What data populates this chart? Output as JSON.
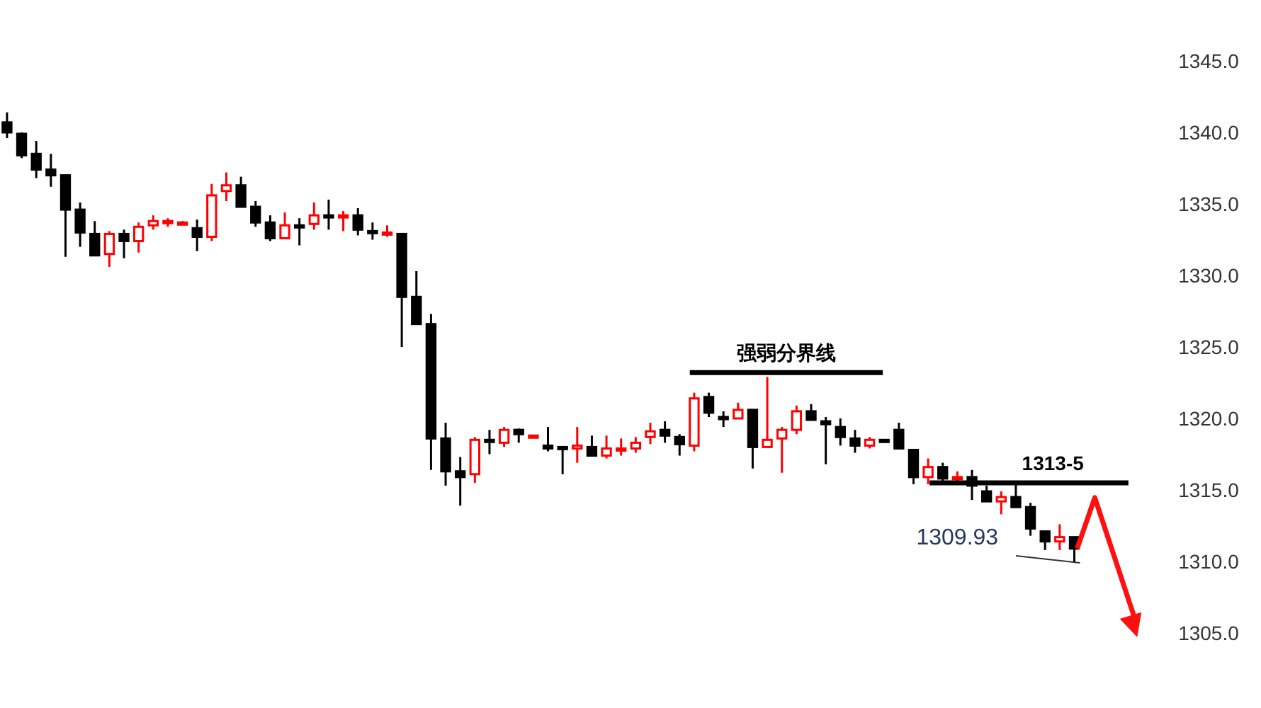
{
  "chart_data": {
    "type": "candlestick",
    "categories": [
      null,
      null,
      null,
      null,
      null,
      null,
      null,
      null,
      null,
      null,
      null,
      null,
      null,
      null,
      null,
      null,
      null,
      null,
      null,
      null,
      null,
      null,
      null,
      null,
      null,
      null,
      null,
      null,
      null,
      null,
      null,
      null,
      null,
      null,
      null,
      null,
      null,
      null,
      null,
      null,
      null,
      null,
      null,
      null,
      null,
      null,
      null,
      null,
      null,
      null,
      null,
      null,
      null,
      null,
      null,
      null,
      null,
      null,
      null,
      null,
      null,
      null,
      null,
      null,
      null,
      null,
      null,
      null,
      null,
      null,
      null,
      null,
      null,
      null
    ],
    "ohlc": [
      [
        1340.7,
        1341.4,
        1339.6,
        1340.0
      ],
      [
        1339.9,
        1340.0,
        1338.2,
        1338.4
      ],
      [
        1338.5,
        1339.4,
        1336.8,
        1337.4
      ],
      [
        1337.4,
        1338.5,
        1336.2,
        1337.0
      ],
      [
        1337.0,
        1337.0,
        1331.3,
        1334.6
      ],
      [
        1334.6,
        1335.1,
        1332.0,
        1333.0
      ],
      [
        1332.9,
        1333.8,
        1331.4,
        1331.4
      ],
      [
        1331.5,
        1333.1,
        1330.6,
        1332.9
      ],
      [
        1332.9,
        1333.2,
        1331.2,
        1332.4
      ],
      [
        1332.4,
        1333.7,
        1331.6,
        1333.4
      ],
      [
        1333.5,
        1334.2,
        1333.2,
        1333.8
      ],
      [
        1333.7,
        1334.0,
        1333.4,
        1333.8
      ],
      [
        1333.7,
        1333.8,
        1333.7,
        1333.7
      ],
      [
        1333.3,
        1333.9,
        1331.7,
        1332.7
      ],
      [
        1332.7,
        1336.4,
        1332.4,
        1335.6
      ],
      [
        1335.9,
        1337.2,
        1335.2,
        1336.3
      ],
      [
        1336.3,
        1336.9,
        1334.8,
        1334.8
      ],
      [
        1334.8,
        1335.2,
        1333.4,
        1333.7
      ],
      [
        1333.7,
        1334.2,
        1332.4,
        1332.6
      ],
      [
        1332.6,
        1334.4,
        1332.6,
        1333.5
      ],
      [
        1333.5,
        1334.0,
        1332.1,
        1333.4
      ],
      [
        1333.6,
        1335.1,
        1333.2,
        1334.2
      ],
      [
        1334.2,
        1335.3,
        1333.2,
        1334.1
      ],
      [
        1334.1,
        1334.5,
        1333.1,
        1334.2
      ],
      [
        1334.2,
        1334.7,
        1332.8,
        1333.2
      ],
      [
        1333.1,
        1333.7,
        1332.5,
        1333.0
      ],
      [
        1332.9,
        1333.5,
        1332.7,
        1333.0
      ],
      [
        1332.9,
        1332.9,
        1325.0,
        1328.5
      ],
      [
        1328.5,
        1330.3,
        1326.6,
        1326.6
      ],
      [
        1326.6,
        1327.3,
        1316.4,
        1318.6
      ],
      [
        1318.6,
        1319.7,
        1315.3,
        1316.3
      ],
      [
        1316.3,
        1317.3,
        1313.9,
        1315.9
      ],
      [
        1316.1,
        1318.7,
        1315.5,
        1318.5
      ],
      [
        1318.5,
        1319.2,
        1317.5,
        1318.4
      ],
      [
        1318.3,
        1319.4,
        1318.0,
        1319.2
      ],
      [
        1319.2,
        1319.3,
        1318.3,
        1318.9
      ],
      [
        1318.7,
        1318.8,
        1318.6,
        1318.8
      ],
      [
        1318.1,
        1319.4,
        1317.7,
        1317.9
      ],
      [
        1318.0,
        1318.0,
        1316.1,
        1317.9
      ],
      [
        1317.9,
        1319.4,
        1316.9,
        1318.1
      ],
      [
        1318.0,
        1318.8,
        1317.4,
        1317.4
      ],
      [
        1317.4,
        1318.8,
        1317.2,
        1317.9
      ],
      [
        1317.8,
        1318.6,
        1317.4,
        1317.9
      ],
      [
        1317.9,
        1318.7,
        1317.6,
        1318.3
      ],
      [
        1318.7,
        1319.7,
        1318.2,
        1319.1
      ],
      [
        1319.2,
        1319.8,
        1318.3,
        1318.8
      ],
      [
        1318.7,
        1318.9,
        1317.4,
        1318.2
      ],
      [
        1318.1,
        1321.8,
        1317.7,
        1321.4
      ],
      [
        1321.5,
        1321.8,
        1320.1,
        1320.4
      ],
      [
        1320.1,
        1320.5,
        1319.4,
        1320.0
      ],
      [
        1320.0,
        1321.1,
        1320.0,
        1320.6
      ],
      [
        1320.6,
        1320.6,
        1316.5,
        1318.0
      ],
      [
        1318.0,
        1322.9,
        1318.0,
        1318.5
      ],
      [
        1318.6,
        1319.4,
        1316.2,
        1319.2
      ],
      [
        1319.2,
        1320.9,
        1318.9,
        1320.5
      ],
      [
        1320.5,
        1321.0,
        1319.9,
        1319.9
      ],
      [
        1319.8,
        1320.1,
        1316.8,
        1319.6
      ],
      [
        1319.4,
        1320.0,
        1318.1,
        1318.7
      ],
      [
        1318.6,
        1319.2,
        1317.6,
        1318.1
      ],
      [
        1318.1,
        1318.7,
        1317.9,
        1318.5
      ],
      [
        1318.5,
        1318.5,
        1318.4,
        1318.4
      ],
      [
        1319.2,
        1319.7,
        1317.9,
        1317.9
      ],
      [
        1317.8,
        1317.8,
        1315.4,
        1315.9
      ],
      [
        1315.9,
        1317.2,
        1315.4,
        1316.6
      ],
      [
        1316.6,
        1316.9,
        1315.6,
        1315.8
      ],
      [
        1315.8,
        1316.3,
        1315.4,
        1315.9
      ],
      [
        1315.9,
        1316.4,
        1314.3,
        1315.3
      ],
      [
        1314.9,
        1315.3,
        1314.2,
        1314.2
      ],
      [
        1314.2,
        1314.9,
        1313.3,
        1314.5
      ],
      [
        1314.5,
        1315.6,
        1313.8,
        1313.8
      ],
      [
        1313.8,
        1314.1,
        1311.8,
        1312.3
      ],
      [
        1312.1,
        1312.1,
        1310.8,
        1311.4
      ],
      [
        1311.4,
        1312.6,
        1310.8,
        1311.7
      ],
      [
        1311.7,
        1311.7,
        1309.9,
        1310.9
      ]
    ],
    "colors": [
      "#000000",
      "#000000",
      "#000000",
      "#000000",
      "#000000",
      "#000000",
      "#000000",
      "#ff0000",
      "#000000",
      "#ff0000",
      "#ff0000",
      "#ff0000",
      "#ff0000",
      "#000000",
      "#ff0000",
      "#ff0000",
      "#000000",
      "#000000",
      "#000000",
      "#ff0000",
      "#000000",
      "#ff0000",
      "#000000",
      "#ff0000",
      "#000000",
      "#000000",
      "#ff0000",
      "#000000",
      "#000000",
      "#000000",
      "#000000",
      "#000000",
      "#ff0000",
      "#000000",
      "#ff0000",
      "#000000",
      "#ff0000",
      "#000000",
      "#000000",
      "#ff0000",
      "#000000",
      "#ff0000",
      "#ff0000",
      "#ff0000",
      "#ff0000",
      "#000000",
      "#000000",
      "#ff0000",
      "#000000",
      "#000000",
      "#ff0000",
      "#000000",
      "#ff0000",
      "#ff0000",
      "#ff0000",
      "#000000",
      "#000000",
      "#000000",
      "#000000",
      "#ff0000",
      "#000000",
      "#000000",
      "#000000",
      "#ff0000",
      "#000000",
      "#ff0000",
      "#000000",
      "#000000",
      "#ff0000",
      "#000000",
      "#000000",
      "#000000",
      "#ff0000",
      "#000000"
    ],
    "ylim": [
      1305,
      1345
    ],
    "yticks": [
      {
        "value": 1345,
        "label": "1345.0"
      },
      {
        "value": 1340,
        "label": "1340.0"
      },
      {
        "value": 1335,
        "label": "1335.0"
      },
      {
        "value": 1330,
        "label": "1330.0"
      },
      {
        "value": 1325,
        "label": "1325.0"
      },
      {
        "value": 1320,
        "label": "1320.0"
      },
      {
        "value": 1315,
        "label": "1315.0"
      },
      {
        "value": 1310,
        "label": "1310.0"
      },
      {
        "value": 1305,
        "label": "1305.0"
      }
    ],
    "ref_lines": [
      {
        "axis": "y",
        "value": 1323.2,
        "label": "强弱分界线",
        "color": "#000000"
      },
      {
        "axis": "y",
        "value": 1315.5,
        "color": "#000000"
      }
    ],
    "annotations": [
      "1309.93",
      "1313-5"
    ],
    "grid": false
  }
}
